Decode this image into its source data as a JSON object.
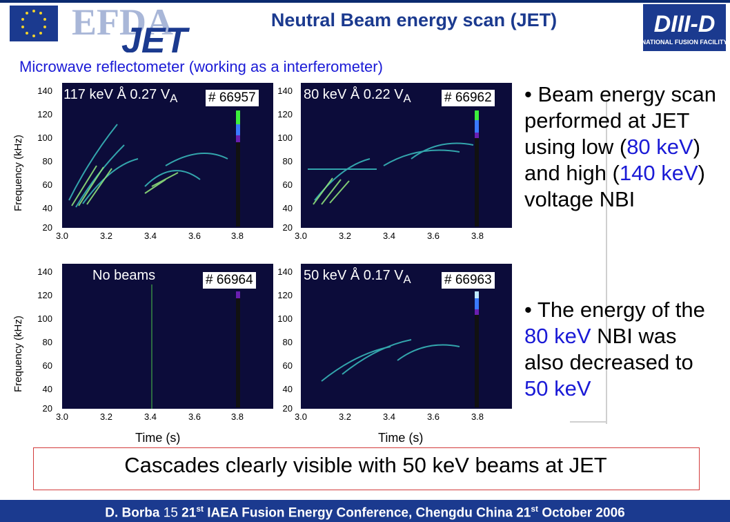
{
  "header": {
    "title": "Neutral Beam energy scan (JET)",
    "subtitle": "Microwave reflectometer  (working as a interferometer)",
    "left_logo_text": "EFDA JET",
    "right_logo_text": "DIII-D",
    "right_logo_subtext": "NATIONAL FUSION FACILITY"
  },
  "panels": [
    {
      "label": "117 keV Å 0.27 V",
      "label_sub": "A",
      "shot": "# 66957",
      "yticks": [
        "140",
        "120",
        "100",
        "80",
        "60",
        "40",
        "20"
      ],
      "xticks": [
        "3.0",
        "3.2",
        "3.4",
        "3.6",
        "3.8"
      ]
    },
    {
      "label": "80 keV Å  0.22 V",
      "label_sub": "A",
      "shot": "# 66962",
      "yticks": [
        "140",
        "120",
        "100",
        "80",
        "60",
        "40",
        "20"
      ],
      "xticks": [
        "3.0",
        "3.2",
        "3.4",
        "3.6",
        "3.8"
      ]
    },
    {
      "label": "No beams",
      "label_sub": "",
      "shot": "# 66964",
      "yticks": [
        "140",
        "120",
        "100",
        "80",
        "60",
        "40",
        "20"
      ],
      "xticks": [
        "3.0",
        "3.2",
        "3.4",
        "3.6",
        "3.8"
      ]
    },
    {
      "label": "50 keV Å 0.17 V",
      "label_sub": "A",
      "shot": "# 66963",
      "yticks": [
        "140",
        "120",
        "100",
        "80",
        "60",
        "40",
        "20"
      ],
      "xticks": [
        "3.0",
        "3.2",
        "3.4",
        "3.6",
        "3.8"
      ]
    }
  ],
  "axes": {
    "ylabel": "Frequency (kHz)",
    "xlabel": "Time (s)"
  },
  "bullets": {
    "b1_prefix": "• Beam energy scan performed at JET using low (",
    "b1_low": "80 keV",
    "b1_mid": ") and high (",
    "b1_high": "140 keV",
    "b1_suffix": ") voltage NBI",
    "b2_prefix": "• The energy of the ",
    "b2_e1": "80 keV",
    "b2_mid": " NBI was also decreased to ",
    "b2_e2": "50 keV"
  },
  "callout": "Cascades clearly visible with 50 keV beams at JET",
  "footer": {
    "author": "D. Borba",
    "page": "15",
    "conf_num": "21",
    "conf_sup": "st",
    "conf_text": "IAEA Fusion Energy Conference, Chengdu China",
    "date_num": "21",
    "date_sup": "st",
    "date_text": "October 2006"
  },
  "colors": {
    "accent": "#1b3a8f",
    "highlight_blue": "#1a1ad6",
    "spectrogram_bg": "#0c0c3a",
    "callout_border": "#d23a3a"
  }
}
